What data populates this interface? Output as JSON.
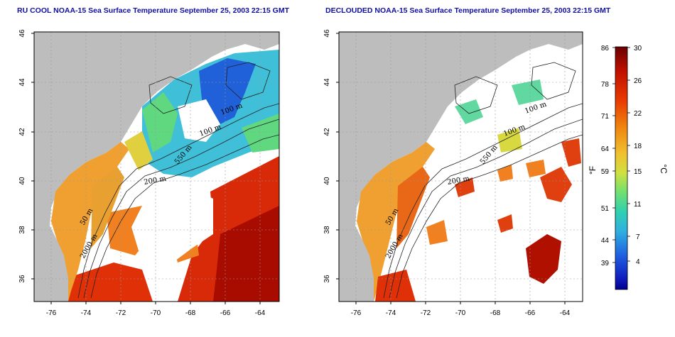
{
  "panels": [
    {
      "title": "RU COOL NOAA-15 Sea Surface Temperature September 25, 2003 22:15 GMT",
      "contour_labels": [
        "100 m",
        "100 m",
        "550 m",
        "200 m",
        "50 m",
        "2000 m"
      ]
    },
    {
      "title": "DECLOUDED NOAA-15 Sea Surface Temperature September 25, 2003 22:15 GMT",
      "contour_labels": [
        "100 m",
        "100 m",
        "550 m",
        "200 m",
        "50 m",
        "2000 m"
      ]
    }
  ],
  "axes": {
    "lon_ticks": [
      "-76",
      "-74",
      "-72",
      "-70",
      "-68",
      "-66",
      "-64"
    ],
    "lat_ticks": [
      "46",
      "44",
      "42",
      "40",
      "38",
      "36"
    ]
  },
  "colorbar": {
    "fahrenheit_ticks": [
      "86",
      "78",
      "71",
      "64",
      "59",
      "51",
      "44",
      "39"
    ],
    "celsius_ticks": [
      "30",
      "26",
      "22",
      "18",
      "15",
      "11",
      "7",
      "4"
    ],
    "fahrenheit_unit": "°F",
    "celsius_unit": "°C"
  },
  "colors": {
    "land": "#bdbdbd",
    "water_cloud": "#ffffff",
    "title": "#1010a0",
    "ramp": [
      "#7a0000",
      "#c01000",
      "#e83a00",
      "#f07a10",
      "#f0a828",
      "#e8d040",
      "#a0e050",
      "#40d890",
      "#30c0d0",
      "#2080e0",
      "#1020c0",
      "#000080"
    ]
  }
}
